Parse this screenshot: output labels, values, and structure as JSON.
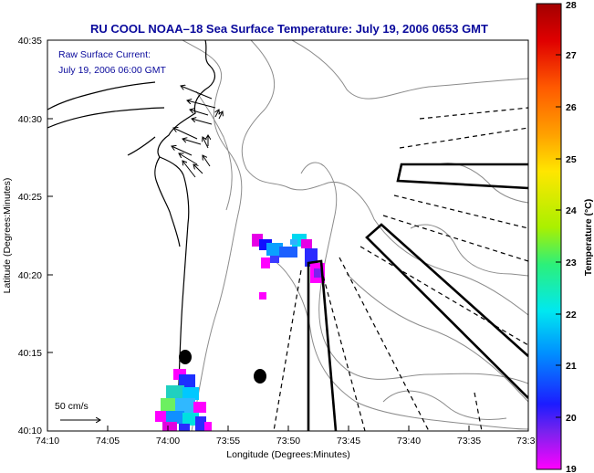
{
  "title": "RU COOL  NOAA–18  Sea Surface Temperature:  July 19, 2006 0653 GMT",
  "current_label": "Raw Surface Current:",
  "current_time": "July 19, 2006 06:00 GMT",
  "scale_label": "50 cm/s",
  "x_axis_label": "Longitude (Degrees:Minutes)",
  "y_axis_label": "Latitude (Degrees:Minutes)",
  "colorbar_label": "Temperature (°C)",
  "x_ticks": [
    "74:10",
    "74:05",
    "74:00",
    "73:55",
    "73:50",
    "73:45",
    "73:40",
    "73:35",
    "73:3"
  ],
  "y_ticks": [
    "40:35",
    "40:30",
    "40:25",
    "40:20",
    "40:15",
    "40:10"
  ],
  "colorbar_ticks": [
    "28",
    "27",
    "26",
    "25",
    "24",
    "23",
    "22",
    "21",
    "20",
    "19"
  ],
  "colors": {
    "title_text": "#0a0a9c",
    "coastline": "#000000",
    "bathymetry": "#8c8c8c",
    "colorbar_scale": [
      "#ff00ff",
      "#7a22ee",
      "#1c1cff",
      "#0090ff",
      "#00e8f0",
      "#2cf07a",
      "#aaf000",
      "#ffe600",
      "#ffa000",
      "#ff5a00",
      "#e00000",
      "#a30000"
    ]
  }
}
